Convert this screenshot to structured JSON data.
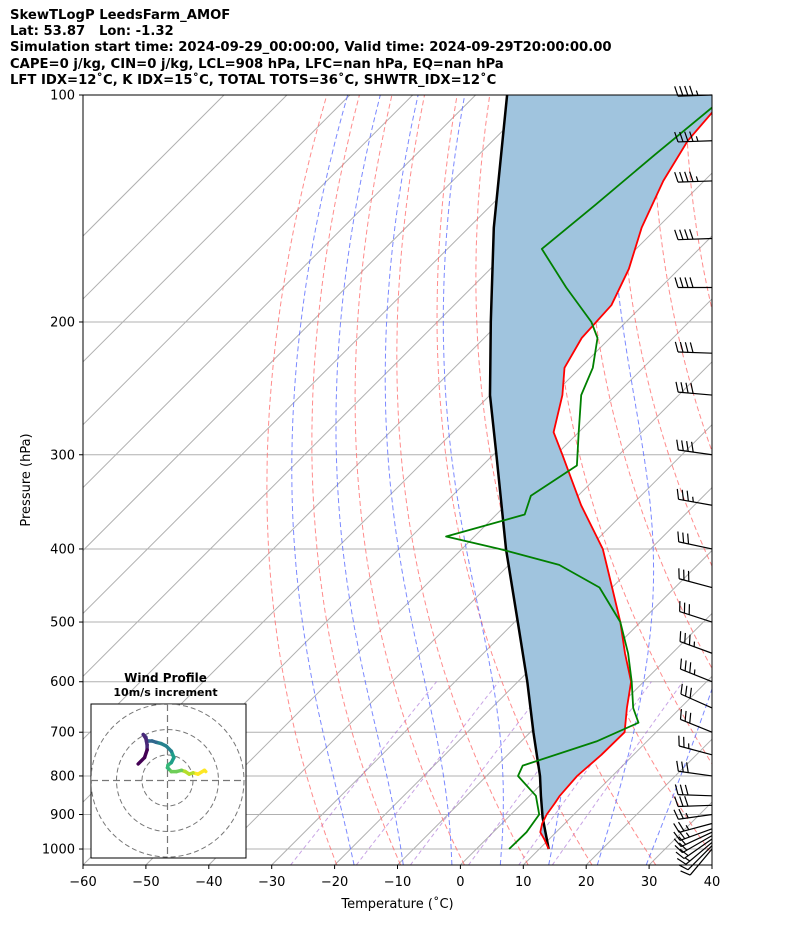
{
  "header": {
    "line1": "SkewTLogP LeedsFarm_AMOF",
    "line2": "Lat: 53.87   Lon: -1.32",
    "line3": "Simulation start time: 2024-09-29_00:00:00, Valid time: 2024-09-29T20:00:00.00",
    "line4": "CAPE=0 j/kg, CIN=0 j/kg, LCL=908 hPa, LFC=nan hPa, EQ=nan hPa",
    "line5": "LFT IDX=12˚C, K IDX=15˚C, TOTAL TOTS=36˚C, SHWTR_IDX=12˚C"
  },
  "chart_data": [
    {
      "type": "line",
      "title": "",
      "xlabel": "Temperature (˚C)",
      "ylabel": "Pressure (hPa)",
      "xlim": [
        -60,
        40
      ],
      "ylim": [
        1050,
        100
      ],
      "y_scale": "log",
      "skew_t": true,
      "grid": true,
      "x_ticks": [
        -60,
        -50,
        -40,
        -30,
        -20,
        -10,
        0,
        10,
        20,
        30,
        40
      ],
      "x_tick_labels": [
        "−60",
        "−50",
        "−40",
        "−30",
        "−20",
        "−10",
        "0",
        "10",
        "20",
        "30",
        "40"
      ],
      "y_ticks": [
        100,
        200,
        300,
        400,
        500,
        600,
        700,
        800,
        900,
        1000
      ],
      "y_tick_labels": [
        "100",
        "200",
        "300",
        "400",
        "500",
        "600",
        "700",
        "800",
        "900",
        "1000"
      ],
      "dry_adiabats_theta_K": [
        250,
        260,
        270,
        280,
        290,
        300,
        310,
        320,
        330,
        340,
        350,
        360,
        370,
        380
      ],
      "moist_adiabats_start_C": [
        -20,
        -12,
        -4,
        4,
        12,
        20,
        28
      ],
      "colors": {
        "temperature": "#ff0000",
        "dewpoint": "#008000",
        "parcel": "#000000",
        "cape_fill": "#a0c4de",
        "dry_adiabat": "#ff6666",
        "moist_adiabat": "#5a6cff",
        "mixing_ratio": "#9b59d0",
        "grid": "#b0b0b0"
      },
      "series": [
        {
          "key": "temperature",
          "p": [
            1000,
            970,
            950,
            925,
            900,
            870,
            850,
            800,
            750,
            700,
            650,
            600,
            550,
            500,
            450,
            400,
            350,
            300,
            280,
            250,
            230,
            210,
            190,
            170,
            150,
            130,
            115,
            100
          ],
          "values": [
            11.5,
            9.2,
            7.5,
            6.4,
            5.7,
            5.2,
            4.8,
            4.4,
            4.9,
            5.0,
            1.5,
            -2.0,
            -7.5,
            -13.2,
            -20.0,
            -27.6,
            -38.0,
            -49.0,
            -54.0,
            -58.5,
            -62.5,
            -64.5,
            -65.0,
            -68.0,
            -72.5,
            -76.5,
            -79.0,
            -80.0
          ]
        },
        {
          "key": "dewpoint",
          "p": [
            1000,
            950,
            900,
            850,
            800,
            775,
            720,
            680,
            650,
            600,
            550,
            500,
            450,
            420,
            400,
            385,
            360,
            340,
            310,
            280,
            250,
            230,
            210,
            200,
            180,
            160,
            140,
            120,
            100
          ],
          "values": [
            5.2,
            5.3,
            4.5,
            1.0,
            -5.0,
            -5.9,
            2.0,
            5.7,
            2.5,
            -1.9,
            -7.0,
            -13.2,
            -22.0,
            -32.0,
            -44.0,
            -54.5,
            -45.5,
            -47.5,
            -45.0,
            -50.0,
            -55.5,
            -58.0,
            -62.0,
            -65.5,
            -75.0,
            -85.0,
            -83.5,
            -82.0,
            -80.0
          ]
        },
        {
          "key": "parcel",
          "p": [
            1000,
            908,
            850,
            800,
            700,
            600,
            500,
            400,
            300,
            250,
            200,
            150,
            100
          ],
          "values": [
            11.5,
            5.5,
            1.8,
            -1.5,
            -9.5,
            -18.5,
            -29.5,
            -43.0,
            -59.5,
            -70.0,
            -81.5,
            -96.0,
            -115.0
          ]
        }
      ],
      "wind_barbs": {
        "p": [
          1000,
          990,
          980,
          970,
          960,
          950,
          940,
          925,
          900,
          875,
          850,
          800,
          750,
          700,
          650,
          600,
          550,
          500,
          450,
          400,
          350,
          300,
          250,
          220,
          180,
          155,
          130,
          115,
          100
        ],
        "speed_kt": [
          8,
          12,
          15,
          18,
          20,
          22,
          24,
          25,
          27,
          28,
          30,
          28,
          24,
          28,
          32,
          35,
          35,
          32,
          30,
          32,
          35,
          38,
          38,
          40,
          42,
          42,
          44,
          44,
          45
        ],
        "direction_deg": [
          220,
          225,
          230,
          235,
          240,
          245,
          250,
          255,
          262,
          268,
          272,
          278,
          285,
          292,
          294,
          292,
          290,
          288,
          285,
          282,
          280,
          278,
          275,
          272,
          270,
          268,
          268,
          268,
          268
        ]
      }
    },
    {
      "type": "hodograph",
      "title": "Wind Profile",
      "subtitle": "10m/s increment",
      "ring_increment_ms": 10,
      "rings": [
        10,
        20,
        30
      ],
      "u": [
        15.0,
        14.5,
        12.0,
        10.0,
        8.5,
        7.0,
        5.5,
        3.5,
        1.5,
        0.5,
        0.0,
        0.2,
        1.5,
        2.5,
        1.5,
        -0.5,
        -2.5,
        -4.5,
        -6.0,
        -7.5,
        -8.2,
        -8.5,
        -9.5,
        -9.5,
        -8.5,
        -8.0,
        -8.0,
        -9.0,
        -11.5
      ],
      "v": [
        3.5,
        4.0,
        2.5,
        3.0,
        2.5,
        3.5,
        4.0,
        3.5,
        3.5,
        4.5,
        5.0,
        6.0,
        7.0,
        9.0,
        11.5,
        13.5,
        14.5,
        15.0,
        15.5,
        15.5,
        15.5,
        17.0,
        18.0,
        18.0,
        16.5,
        14.0,
        12.0,
        9.0,
        6.5
      ]
    }
  ]
}
